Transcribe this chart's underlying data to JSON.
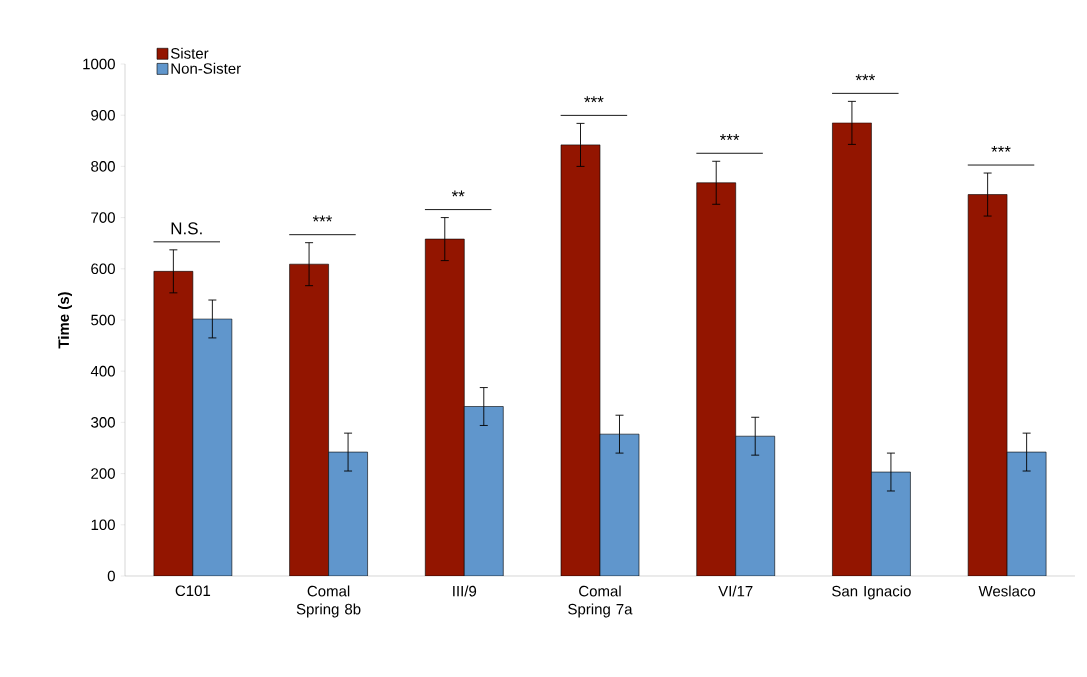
{
  "chart_data": {
    "type": "bar",
    "ylabel": "Time (s)",
    "categories": [
      "C101",
      "Comal Spring 8b",
      "III/9",
      "Comal Spring 7a",
      "VI/17",
      "San Ignacio",
      "Weslaco"
    ],
    "series": [
      {
        "name": "Sister",
        "color": "#931500",
        "values": [
          595,
          609,
          658,
          842,
          768,
          885,
          745
        ],
        "errors": [
          42,
          42,
          42,
          42,
          42,
          42,
          42
        ]
      },
      {
        "name": "Non-Sister",
        "color": "#6096cc",
        "values": [
          502,
          242,
          331,
          277,
          273,
          203,
          242
        ],
        "errors": [
          37,
          37,
          37,
          37,
          37,
          37,
          37
        ]
      }
    ],
    "ylim": [
      0,
      1000
    ],
    "yticks": [
      0,
      100,
      200,
      300,
      400,
      500,
      600,
      700,
      800,
      900,
      1000
    ],
    "grid": false,
    "legend": "top left",
    "annotations": [
      "N.S.",
      "***",
      "**",
      "***",
      "***",
      "***",
      "***"
    ]
  }
}
